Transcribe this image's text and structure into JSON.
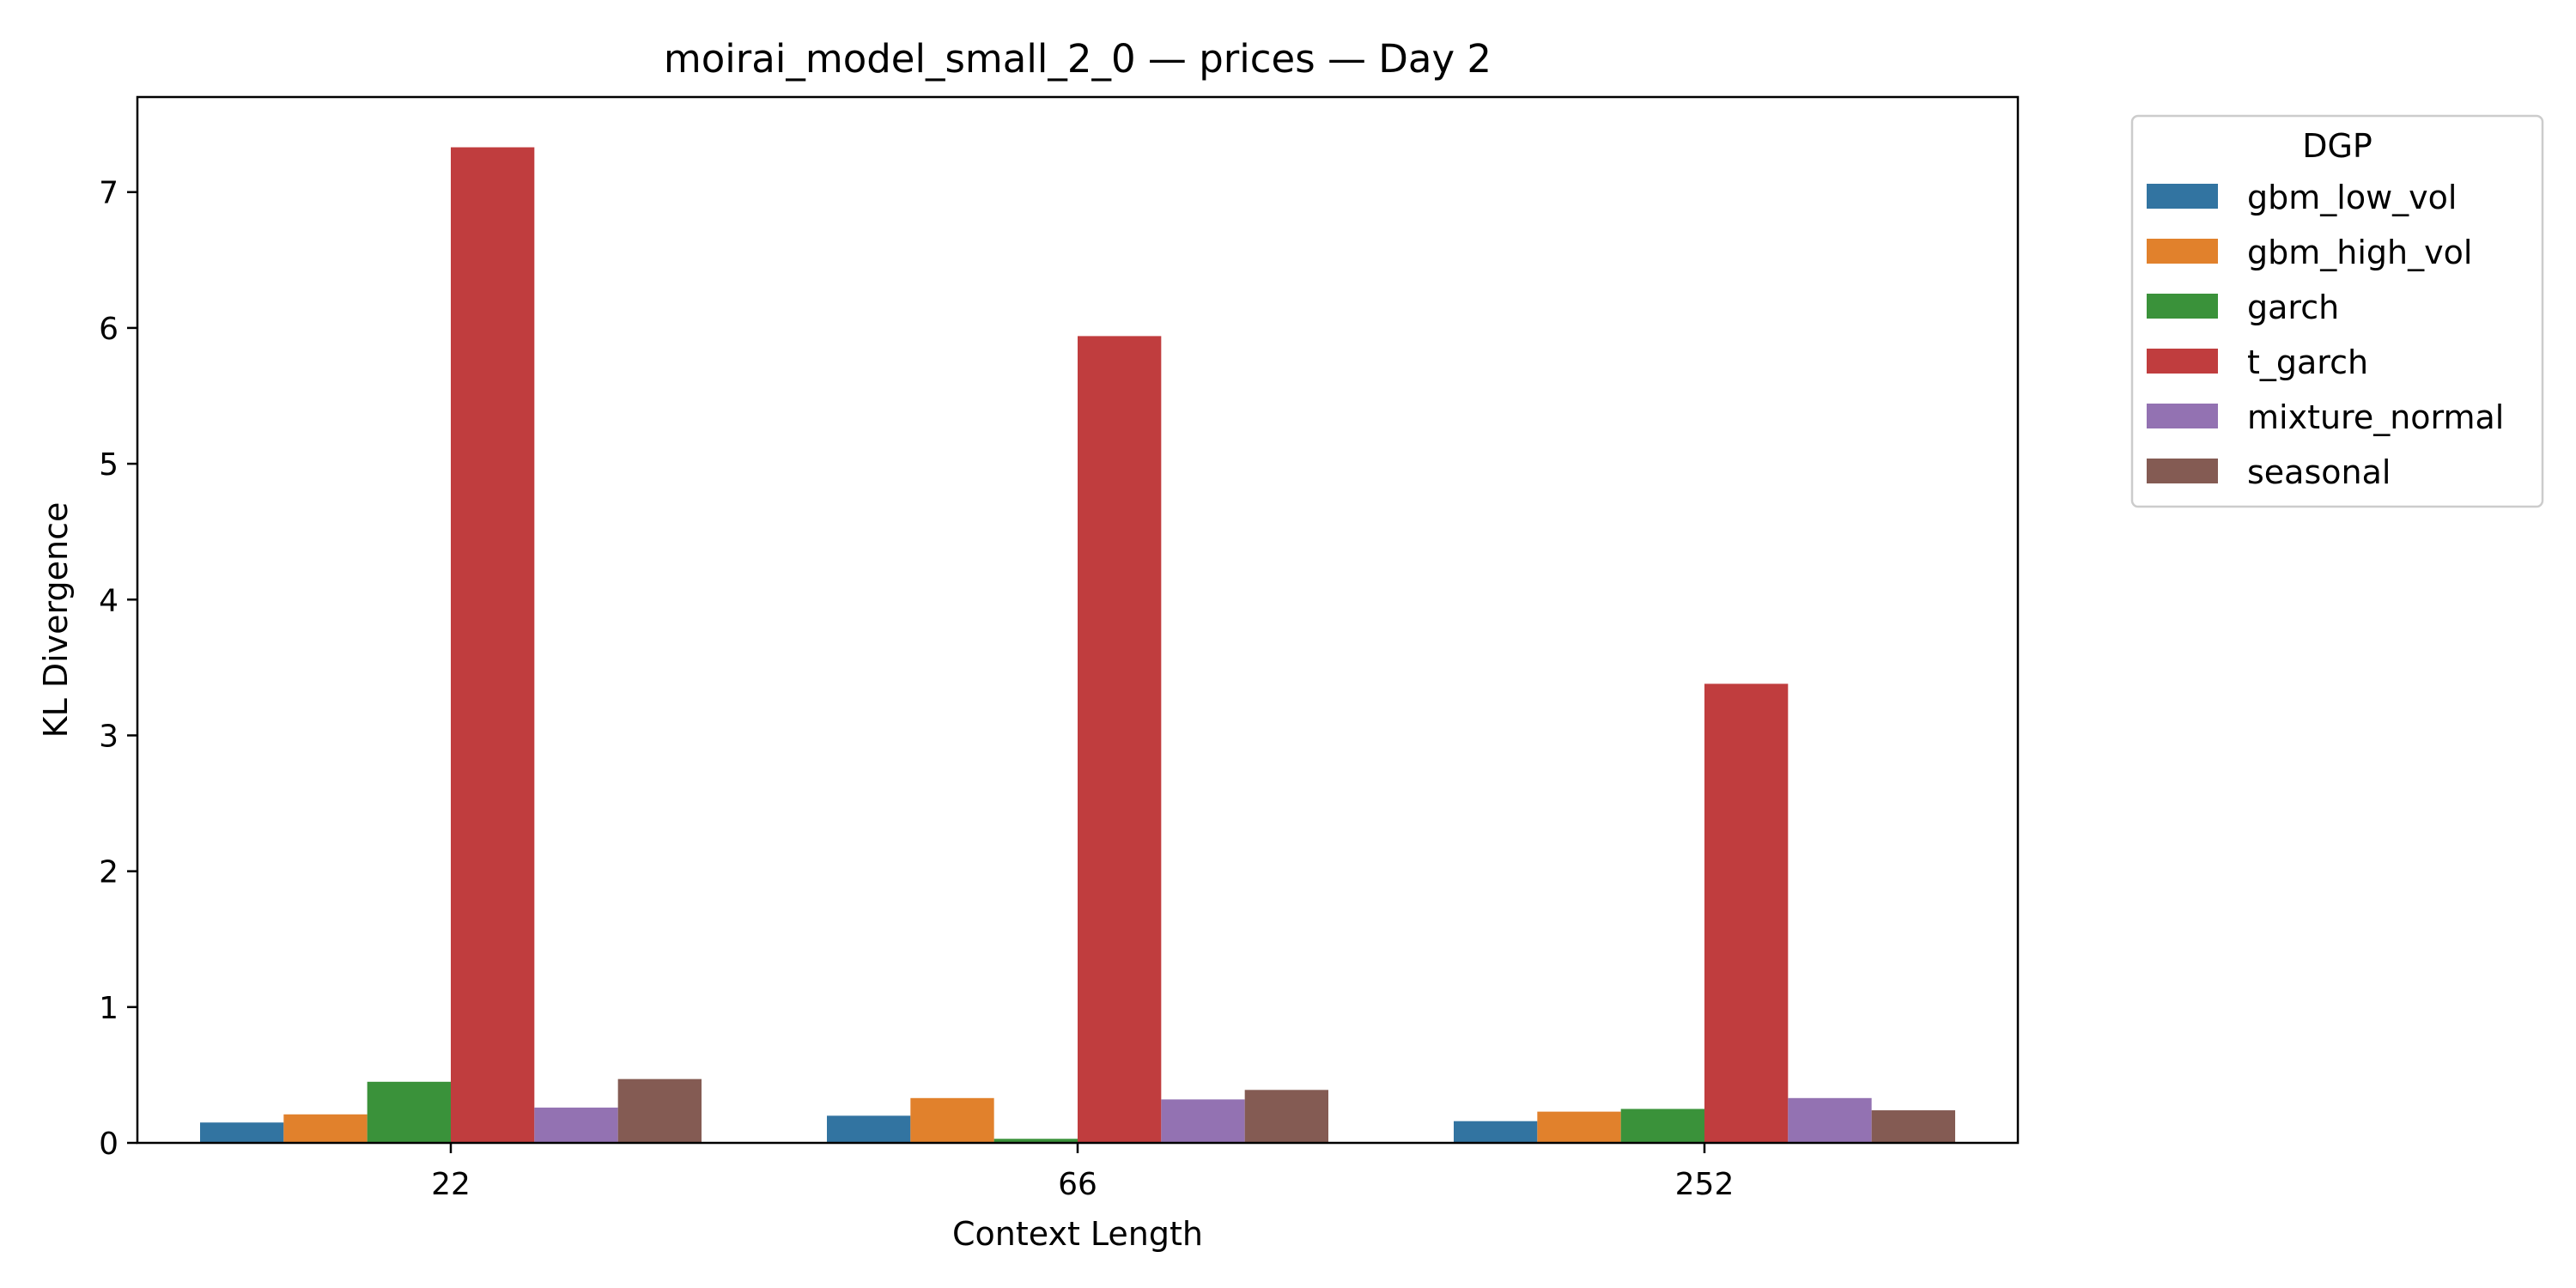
{
  "chart_data": {
    "type": "bar",
    "title": "moirai_model_small_2_0 — prices — Day 2",
    "xlabel": "Context Length",
    "ylabel": "KL Divergence",
    "categories": [
      "22",
      "66",
      "252"
    ],
    "ylim": [
      0,
      7.7
    ],
    "yticks": [
      0,
      1,
      2,
      3,
      4,
      5,
      6,
      7
    ],
    "grid": false,
    "legend": {
      "title": "DGP",
      "placement": "outside-top-right"
    },
    "series": [
      {
        "name": "gbm_low_vol",
        "color": "#3274a1",
        "values": [
          0.15,
          0.2,
          0.16
        ]
      },
      {
        "name": "gbm_high_vol",
        "color": "#e1812c",
        "values": [
          0.21,
          0.33,
          0.23
        ]
      },
      {
        "name": "garch",
        "color": "#3a923a",
        "values": [
          0.45,
          0.03,
          0.25
        ]
      },
      {
        "name": "t_garch",
        "color": "#c03d3e",
        "values": [
          7.33,
          5.94,
          3.38
        ]
      },
      {
        "name": "mixture_normal",
        "color": "#9372b2",
        "values": [
          0.26,
          0.32,
          0.33
        ]
      },
      {
        "name": "seasonal",
        "color": "#845b53",
        "values": [
          0.47,
          0.39,
          0.24
        ]
      }
    ]
  }
}
